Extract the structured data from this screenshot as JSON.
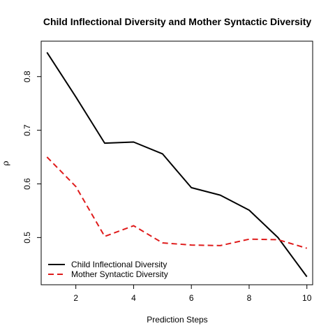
{
  "chart_data": {
    "type": "line",
    "title": "Child Inflectional Diversity and Mother Syntactic Diversity",
    "xlabel": "Prediction Steps",
    "ylabel": "ρ",
    "x": [
      1,
      2,
      3,
      4,
      5,
      6,
      7,
      8,
      9,
      10
    ],
    "xlim": [
      0.8,
      10.2
    ],
    "ylim": [
      0.412,
      0.866
    ],
    "xticks": [
      2,
      4,
      6,
      8,
      10
    ],
    "yticks": [
      0.5,
      0.6,
      0.7,
      0.8
    ],
    "grid": false,
    "legend_position": "bottom-left",
    "series": [
      {
        "name": "Child Inflectional Diversity",
        "color": "#000000",
        "style": "solid",
        "values": [
          0.845,
          0.762,
          0.676,
          0.678,
          0.656,
          0.593,
          0.579,
          0.551,
          0.5,
          0.427
        ]
      },
      {
        "name": "Mother Syntactic Diversity",
        "color": "#df1b1b",
        "style": "dashed",
        "values": [
          0.65,
          0.595,
          0.502,
          0.522,
          0.49,
          0.486,
          0.485,
          0.497,
          0.496,
          0.48
        ]
      }
    ]
  }
}
